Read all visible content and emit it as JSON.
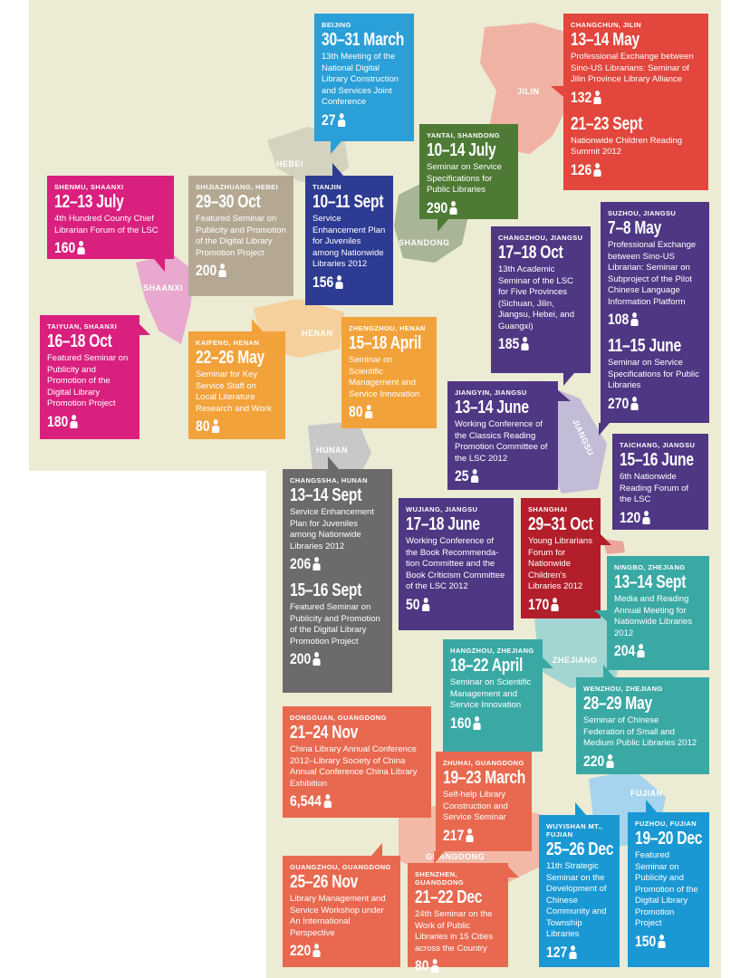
{
  "provinces": {
    "jilin": "JILIN",
    "hebei": "HEBEI",
    "shandong": "SHANDONG",
    "shaanxi": "SHAANXI",
    "henan": "HENAN",
    "hunan": "HUNAN",
    "jiangsu": "JIANGSU",
    "zhejiang": "ZHEJIANG",
    "fujian": "FUJIAN",
    "guangdong": "GUANGDONG"
  },
  "colors": {
    "background": "#ecebd3",
    "cyan": "#2b9fd7",
    "red": "#e2463c",
    "green": "#4e7a35",
    "magenta": "#d9207e",
    "taupe": "#b5a893",
    "navy": "#2e3b93",
    "purple": "#4f3784",
    "orange": "#f2a23a",
    "gray": "#6c6a6c",
    "crimson": "#b21f2b",
    "teal": "#3aa9a4",
    "coral": "#e8694f",
    "blue": "#1a98d4"
  },
  "events": {
    "beijing": {
      "location": "BEIJING",
      "date": "30–31 March",
      "desc": "13th Meeting of the National Digital Library Construction and Services Joint Conference",
      "count": "27"
    },
    "changchun1": {
      "location": "CHANGCHUN, JILIN",
      "date": "13–14 May",
      "desc": "Professional Exchange between Sino-US Librarians: Seminar of Jilin Province Library Alliance",
      "count": "132"
    },
    "changchun2": {
      "date": "21–23 Sept",
      "desc": "Nationwide Children Reading Summit 2012",
      "count": "126"
    },
    "yantai": {
      "location": "YANTAI, SHANDONG",
      "date": "10–14 July",
      "desc": "Seminar on Service Specifications for Public Libraries",
      "count": "290"
    },
    "shenmu": {
      "location": "SHENMU, SHAANXI",
      "date": "12–13 July",
      "desc": "4th Hundred County Chief Librarian Forum of the LSC",
      "count": "160"
    },
    "shijiazhuang": {
      "location": "SHIJIAZHUANG, HEBEI",
      "date": "29–30 Oct",
      "desc": "Featured Seminar on Publicity and Promotion of the Digital Library Promotion Project",
      "count": "200"
    },
    "tianjin": {
      "location": "TIANJIN",
      "date": "10–11 Sept",
      "desc": "Service Enhancement Plan for Juveniles among Nationwide Libraries 2012",
      "count": "156"
    },
    "changzhou": {
      "location": "CHANGZHOU, JIANGSU",
      "date": "17–18 Oct",
      "desc": "13th Academic Seminar of the LSC for Five Provinces (Sichuan, Jilin, Jiangsu, Hebei, and Guangxi)",
      "count": "185"
    },
    "suzhou1": {
      "location": "SUZHOU, JIANGSU",
      "date": "7–8 May",
      "desc": "Professional Exchange between Sino-US Librarian: Seminar on Subproject of the Pilot Chinese Language Information Platform",
      "count": "108"
    },
    "suzhou2": {
      "date": "11–15 June",
      "desc": "Seminar on Service Specifications for Public Libraries",
      "count": "270"
    },
    "taiyuan": {
      "location": "TAIYUAN, SHAANXI",
      "date": "16–18 Oct",
      "desc": "Featured Seminar on Publicity and Promotion of the Digital Library Promotion Project",
      "count": "180"
    },
    "kaifeng": {
      "location": "KAIFENG, HENAN",
      "date": "22–26 May",
      "desc": "Seminar for Key Service Staff on Local Literature Research and Work",
      "count": "80"
    },
    "zhengzhou": {
      "location": "ZHENGZHOU, HENAN",
      "date": "15–18 April",
      "desc": "Seminar on Scientific Management and Service Innovation",
      "count": "80"
    },
    "jiangyin": {
      "location": "JIANGYIN, JIANGSU",
      "date": "13–14 June",
      "desc": "Working Conference of the Classics Reading Promotion Committee of the LSC 2012",
      "count": "25"
    },
    "taichang": {
      "location": "TAICHANG, JIANGSU",
      "date": "15–16 June",
      "desc": "6th Nationwide Reading Forum of the LSC",
      "count": "120"
    },
    "changsha1": {
      "location": "CHANGSSHA, HUNAN",
      "date": "13–14 Sept",
      "desc": "Service Enhancement Plan for Juveniles among Nationwide Libraries 2012",
      "count": "206"
    },
    "changsha2": {
      "date": "15–16 Sept",
      "desc": "Featured Seminar on Publicity and Promotion of the Digital Library Promotion Project",
      "count": "200"
    },
    "wujiang": {
      "location": "WUJIANG, JIANGSU",
      "date": "17–18 June",
      "desc": "Working Conference of the Book Recommenda-tion Committee and the Book Criticism Committee of the LSC 2012",
      "count": "50"
    },
    "shanghai": {
      "location": "SHANGHAI",
      "date": "29–31 Oct",
      "desc": "Young Librarians Forum for Nationwide Children's Libraries 2012",
      "count": "170"
    },
    "ningbo": {
      "location": "NINGBO, ZHEJIANG",
      "date": "13–14 Sept",
      "desc": "Media and Reading Annual Meeting for Nationwide Libraries 2012",
      "count": "204"
    },
    "hangzhou": {
      "location": "HANGZHOU, ZHEJIANG",
      "date": "18–22 April",
      "desc": "Seminar on Scientific Management and Service Innovation",
      "count": "160"
    },
    "wenzhou": {
      "location": "WENZHOU, ZHEJIANG",
      "date": "28–29 May",
      "desc": "Seminar of Chinese Federation of Small and Medium Public Libraries 2012",
      "count": "220"
    },
    "dongguan": {
      "location": "DONGGUAN, GUANGDONG",
      "date": "21–24 Nov",
      "desc": "China Library Annual Conference 2012–Library Society of China Annual Conference China Library Exhibition",
      "count": "6,544"
    },
    "zhuhai": {
      "location": "ZHUHAI, GUANGDONG",
      "date": "19–23 March",
      "desc": "Self-help Library Construction and Service Seminar",
      "count": "217"
    },
    "wuyishan": {
      "location": "WUYISHAN MT., FUJIAN",
      "date": "25–26 Dec",
      "desc": "11th Strategic Seminar on the Development of Chinese Community and Township Libraries",
      "count": "127"
    },
    "fuzhou": {
      "location": "FUZHOU, FUJIAN",
      "date": "19–20 Dec",
      "desc": "Featured Seminar on Publicity and Promotion of the Digital Library Promotion Project",
      "count": "150"
    },
    "guangzhou": {
      "location": "GUANGZHOU, GUANGDONG",
      "date": "25–26 Nov",
      "desc": "Library Management and Service Workshop under An International Perspective",
      "count": "220"
    },
    "shenzhen": {
      "location": "SHENZHEN, GUANGDONG",
      "date": "21–22 Dec",
      "desc": "24th Seminar on the Work of Public Libraries in 15 Cities across the Country",
      "count": "80"
    }
  }
}
